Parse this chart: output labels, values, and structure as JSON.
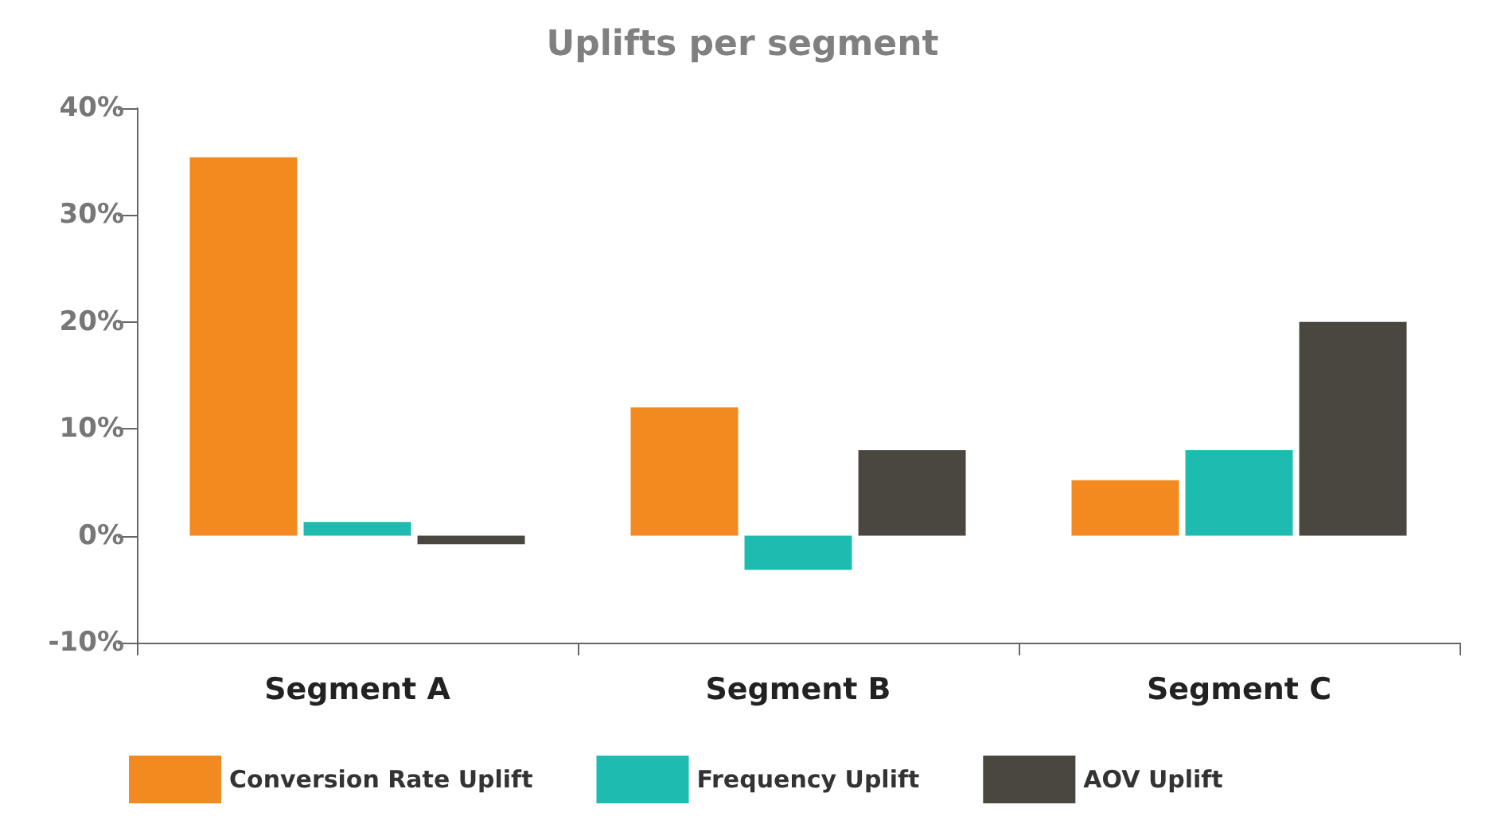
{
  "chart_data": {
    "type": "bar",
    "title": "Uplifts per segment",
    "categories": [
      "Segment A",
      "Segment B",
      "Segment C"
    ],
    "series": [
      {
        "name": "Conversion Rate Uplift",
        "color": "#f28a1f",
        "values": [
          35.4,
          12,
          5.2
        ]
      },
      {
        "name": "Frequency Uplift",
        "color": "#1dbbb0",
        "values": [
          1.3,
          -3.2,
          8
        ]
      },
      {
        "name": "AOV Uplift",
        "color": "#4a4640",
        "values": [
          -0.8,
          8,
          20
        ]
      }
    ],
    "ylim": [
      -10,
      40
    ],
    "yticks": [
      {
        "value": -10,
        "label": "-10%"
      },
      {
        "value": 0,
        "label": "0%"
      },
      {
        "value": 10,
        "label": "10%"
      },
      {
        "value": 20,
        "label": "20%"
      },
      {
        "value": 30,
        "label": "30%"
      },
      {
        "value": 40,
        "label": "40%"
      }
    ],
    "grid": false,
    "legend": "bottom left"
  }
}
